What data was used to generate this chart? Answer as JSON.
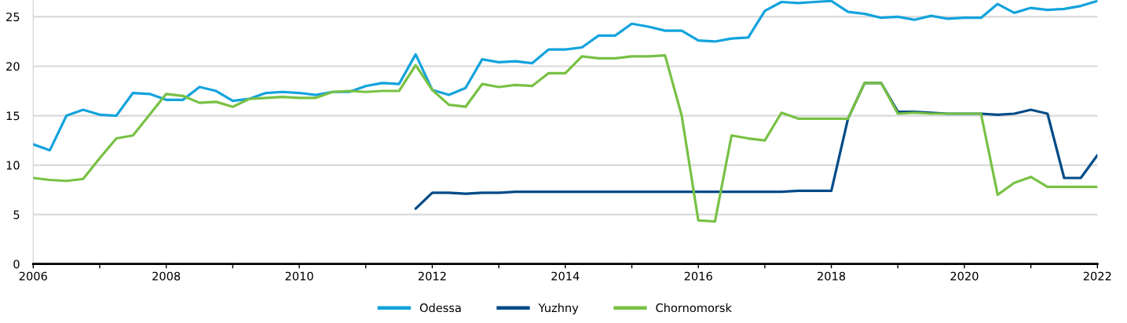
{
  "chart_data": {
    "type": "line",
    "x": [
      2006,
      2006.25,
      2006.5,
      2006.75,
      2007,
      2007.25,
      2007.5,
      2007.75,
      2008,
      2008.25,
      2008.5,
      2008.75,
      2009,
      2009.25,
      2009.5,
      2009.75,
      2010,
      2010.25,
      2010.5,
      2010.75,
      2011,
      2011.25,
      2011.5,
      2011.75,
      2012,
      2012.25,
      2012.5,
      2012.75,
      2013,
      2013.25,
      2013.5,
      2013.75,
      2014,
      2014.25,
      2014.5,
      2014.75,
      2015,
      2015.25,
      2015.5,
      2015.75,
      2016,
      2016.25,
      2016.5,
      2016.75,
      2017,
      2017.25,
      2017.5,
      2017.75,
      2018,
      2018.25,
      2018.5,
      2018.75,
      2019,
      2019.25,
      2019.5,
      2019.75,
      2020,
      2020.25,
      2020.5,
      2020.75,
      2021,
      2021.25,
      2021.5,
      2021.75,
      2022
    ],
    "series": [
      {
        "name": "Odessa",
        "color": "#12a3dd",
        "values": [
          12.1,
          11.5,
          15.0,
          15.6,
          15.1,
          15.0,
          17.3,
          17.2,
          16.6,
          16.6,
          17.9,
          17.5,
          16.5,
          16.7,
          17.3,
          17.4,
          17.3,
          17.1,
          17.4,
          17.4,
          18.0,
          18.3,
          18.2,
          21.2,
          17.6,
          17.1,
          17.8,
          20.7,
          20.4,
          20.5,
          20.3,
          21.7,
          21.7,
          21.9,
          23.1,
          23.1,
          24.3,
          24.0,
          23.6,
          23.6,
          22.6,
          22.5,
          22.8,
          22.9,
          25.6,
          26.5,
          26.4,
          26.5,
          26.6,
          25.5,
          25.3,
          24.9,
          25.0,
          24.7,
          25.1,
          24.8,
          24.9,
          24.9,
          26.3,
          25.4,
          25.9,
          25.7,
          25.8,
          26.1,
          26.6
        ]
      },
      {
        "name": "Yuzhny",
        "color": "#004b87",
        "values": [
          null,
          null,
          null,
          null,
          null,
          null,
          null,
          null,
          null,
          null,
          null,
          null,
          null,
          null,
          null,
          null,
          null,
          null,
          null,
          null,
          null,
          null,
          null,
          5.6,
          7.2,
          7.2,
          7.1,
          7.2,
          7.2,
          7.3,
          7.3,
          7.3,
          7.3,
          7.3,
          7.3,
          7.3,
          7.3,
          7.3,
          7.3,
          7.3,
          7.3,
          7.3,
          7.3,
          7.3,
          7.3,
          7.3,
          7.4,
          7.4,
          7.4,
          14.7,
          18.3,
          18.3,
          15.4,
          15.4,
          15.3,
          15.2,
          15.2,
          15.2,
          15.1,
          15.2,
          15.6,
          15.2,
          8.7,
          8.7,
          11.0
        ]
      },
      {
        "name": "Chornomorsk",
        "color": "#78c144",
        "values": [
          8.7,
          8.5,
          8.4,
          8.6,
          10.7,
          12.7,
          13.0,
          15.1,
          17.2,
          17.0,
          16.3,
          16.4,
          15.9,
          16.7,
          16.8,
          16.9,
          16.8,
          16.8,
          17.4,
          17.5,
          17.4,
          17.5,
          17.5,
          20.1,
          17.6,
          16.1,
          15.9,
          18.2,
          17.9,
          18.1,
          18.0,
          19.3,
          19.3,
          21.0,
          20.8,
          20.8,
          21.0,
          21.0,
          21.1,
          15.0,
          4.4,
          4.3,
          13.0,
          12.7,
          12.5,
          15.3,
          14.7,
          14.7,
          14.7,
          14.7,
          18.3,
          18.3,
          15.2,
          15.3,
          15.2,
          15.2,
          15.2,
          15.2,
          7.0,
          8.2,
          8.8,
          7.8,
          7.8,
          7.8,
          7.8
        ]
      }
    ],
    "xlim": [
      2006,
      2022
    ],
    "xticks": [
      2006,
      {
        "value": 2007,
        "label": null
      },
      2008,
      {
        "value": 2009,
        "label": null
      },
      2010,
      {
        "value": 2011,
        "label": null
      },
      2012,
      {
        "value": 2013,
        "label": null
      },
      2014,
      {
        "value": 2015,
        "label": null
      },
      2016,
      {
        "value": 2017,
        "label": null
      },
      2018,
      {
        "value": 2019,
        "label": null
      },
      2020,
      {
        "value": 2021,
        "label": null
      },
      2022
    ],
    "ylim": [
      0,
      26.7
    ],
    "yticks": [
      0,
      5,
      10,
      15,
      20,
      25
    ],
    "grid": "y",
    "legend": "bottom"
  }
}
